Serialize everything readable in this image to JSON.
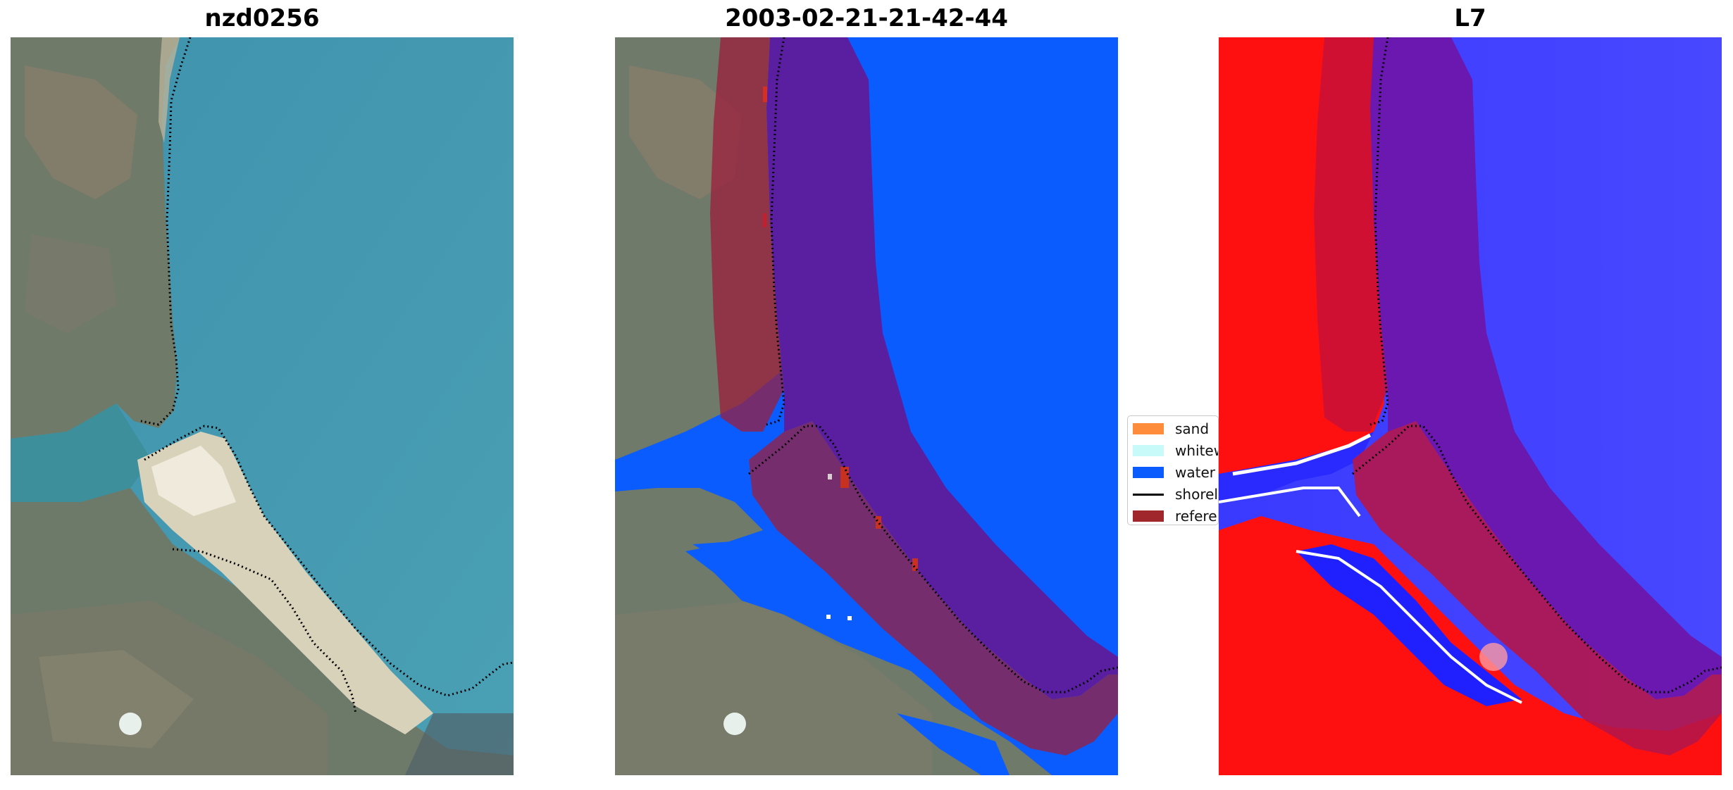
{
  "titles": {
    "left": "nzd0256",
    "middle": "2003-02-21-21-42-44",
    "right": "L7"
  },
  "legend": {
    "items": [
      {
        "label": "sand",
        "color": "#ff8c3a",
        "kind": "patch"
      },
      {
        "label": "whitewater",
        "color": "#c8fafa",
        "kind": "patch"
      },
      {
        "label": "water",
        "color": "#0a5cff",
        "kind": "patch"
      },
      {
        "label": "shoreline",
        "color": "#000000",
        "kind": "line"
      },
      {
        "label": "reference shoreline buffer",
        "color": "#a0282d",
        "kind": "patch"
      }
    ]
  },
  "colors": {
    "water_rgb": "#3b8fae",
    "land_rgb": "#6b7a70",
    "sand_rgb": "#e8dfcc",
    "classified_water": "#0a5cff",
    "buffer_overlay": "#9b1e3c",
    "buffer_over_water": "#5a1fa0",
    "index_red": "#ff1010",
    "index_blue": "#2c2cff"
  }
}
